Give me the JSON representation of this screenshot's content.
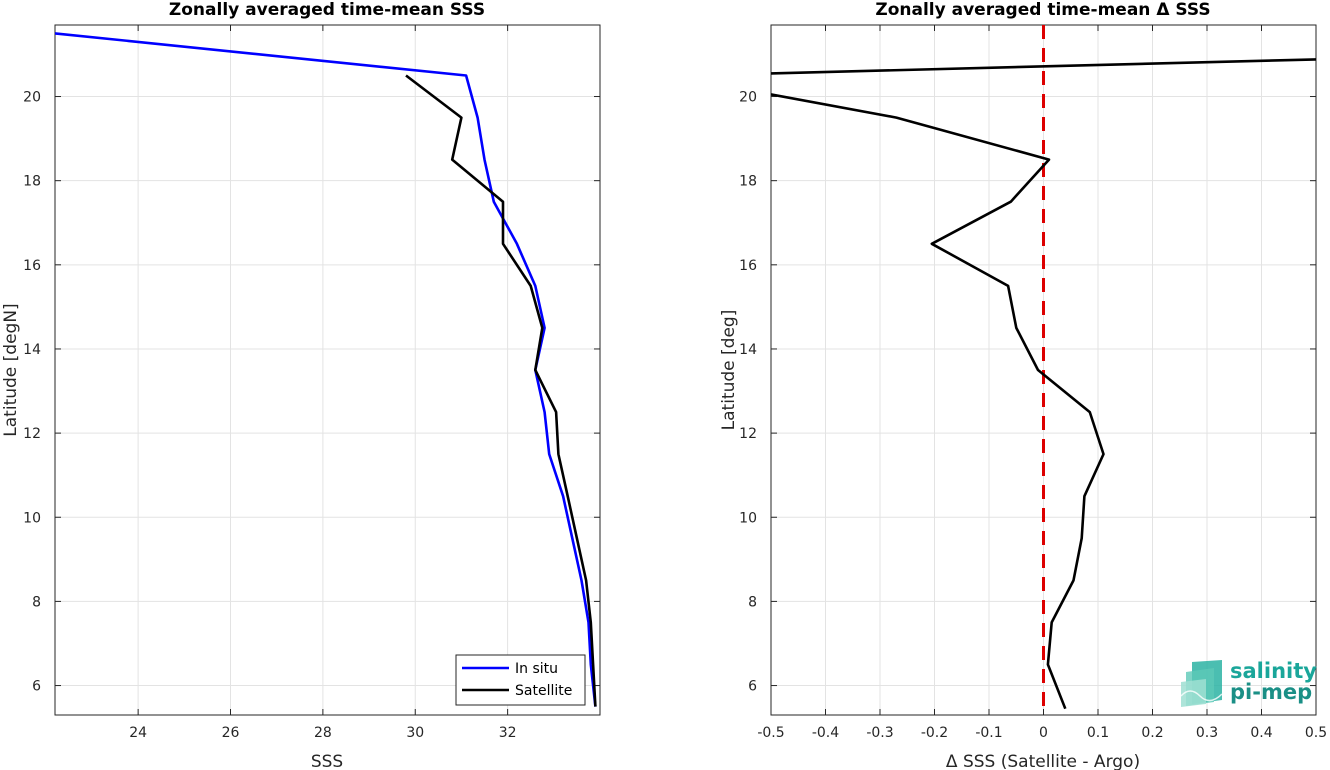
{
  "chart_data": [
    {
      "type": "line",
      "title": "Zonally averaged time-mean SSS",
      "xlabel": "SSS",
      "ylabel": "Latitude [degN]",
      "xlim": [
        22.2,
        34.0
      ],
      "ylim": [
        5.3,
        21.7
      ],
      "xticks": [
        24,
        26,
        28,
        30,
        32
      ],
      "yticks": [
        6,
        8,
        10,
        12,
        14,
        16,
        18,
        20
      ],
      "grid": true,
      "legend_position": "bottom-right",
      "series": [
        {
          "name": "In situ",
          "color": "#0000ff",
          "points": [
            [
              22.2,
              21.5
            ],
            [
              31.1,
              20.5
            ],
            [
              31.35,
              19.5
            ],
            [
              31.5,
              18.5
            ],
            [
              31.7,
              17.5
            ],
            [
              32.2,
              16.5
            ],
            [
              32.6,
              15.5
            ],
            [
              32.8,
              14.5
            ],
            [
              32.6,
              13.5
            ],
            [
              32.8,
              12.5
            ],
            [
              32.9,
              11.5
            ],
            [
              33.2,
              10.5
            ],
            [
              33.4,
              9.5
            ],
            [
              33.6,
              8.5
            ],
            [
              33.75,
              7.5
            ],
            [
              33.8,
              6.5
            ],
            [
              33.9,
              5.5
            ]
          ]
        },
        {
          "name": "Satellite",
          "color": "#000000",
          "points": [
            [
              29.8,
              20.5
            ],
            [
              31.0,
              19.5
            ],
            [
              30.8,
              18.5
            ],
            [
              31.9,
              17.5
            ],
            [
              31.9,
              16.5
            ],
            [
              32.5,
              15.5
            ],
            [
              32.75,
              14.5
            ],
            [
              32.6,
              13.5
            ],
            [
              33.05,
              12.5
            ],
            [
              33.1,
              11.5
            ],
            [
              33.3,
              10.5
            ],
            [
              33.5,
              9.5
            ],
            [
              33.7,
              8.5
            ],
            [
              33.8,
              7.5
            ],
            [
              33.85,
              6.5
            ],
            [
              33.9,
              5.5
            ]
          ]
        }
      ]
    },
    {
      "type": "line",
      "title": "Zonally averaged time-mean Δ SSS",
      "xlabel": "Δ SSS (Satellite - Argo)",
      "ylabel": "Latitude [deg]",
      "xlim": [
        -0.5,
        0.5
      ],
      "ylim": [
        5.3,
        21.7
      ],
      "xticks": [
        -0.5,
        -0.4,
        -0.3,
        -0.2,
        -0.1,
        0,
        0.1,
        0.2,
        0.3,
        0.4,
        0.5
      ],
      "xtick_labels": [
        "-0.5",
        "-0.4",
        "-0.3",
        "-0.2",
        "-0.1",
        "0",
        "0.1",
        "0.2",
        "0.3",
        "0.4",
        "0.5"
      ],
      "yticks": [
        6,
        8,
        10,
        12,
        14,
        16,
        18,
        20
      ],
      "grid": true,
      "reference_line": {
        "x": 0,
        "color": "#dd0000",
        "style": "dashed"
      },
      "series": [
        {
          "color": "#000000",
          "points": [
            [
              0.55,
              20.9
            ],
            [
              -0.5,
              20.55
            ]
          ]
        },
        {
          "color": "#000000",
          "points": [
            [
              -0.5,
              20.05
            ],
            [
              -0.27,
              19.5
            ],
            [
              0.01,
              18.5
            ],
            [
              -0.06,
              17.5
            ],
            [
              -0.205,
              16.5
            ],
            [
              -0.065,
              15.5
            ],
            [
              -0.05,
              14.5
            ],
            [
              -0.01,
              13.5
            ],
            [
              0.085,
              12.5
            ],
            [
              0.11,
              11.5
            ],
            [
              0.075,
              10.5
            ],
            [
              0.07,
              9.5
            ],
            [
              0.055,
              8.5
            ],
            [
              0.015,
              7.5
            ],
            [
              0.008,
              6.5
            ],
            [
              0.04,
              5.45
            ]
          ]
        }
      ]
    }
  ],
  "logo": {
    "line1": "salinity",
    "line2": "pi-mep",
    "color": "#1aa69a"
  }
}
